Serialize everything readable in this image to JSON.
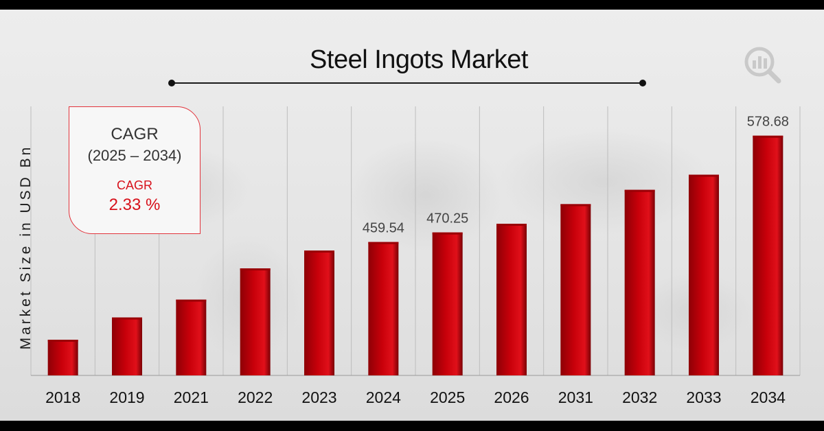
{
  "chart_data": {
    "type": "bar",
    "title": "Steel Ingots Market",
    "ylabel": "Market Size in USD Bn",
    "xlabel": "",
    "categories": [
      "2018",
      "2019",
      "2021",
      "2022",
      "2023",
      "2024",
      "2025",
      "2026",
      "2031",
      "2032",
      "2033",
      "2034"
    ],
    "values": [
      350,
      375,
      395,
      430,
      450,
      459.54,
      470.25,
      480,
      502,
      518,
      535,
      578.68
    ],
    "data_labels": {
      "2024": "459.54",
      "2025": "470.25",
      "2034": "578.68"
    },
    "ylim": [
      310,
      600
    ],
    "grid": "vertical",
    "bar_color": "#c8000a"
  },
  "cagr": {
    "title": "CAGR",
    "period": "(2025 – 2034)",
    "label": "CAGR",
    "value": "2.33 %"
  },
  "colors": {
    "accent": "#d7101a",
    "bar": "#c8000a"
  },
  "logo": {
    "icon": "bar-chart-magnifier-icon"
  }
}
